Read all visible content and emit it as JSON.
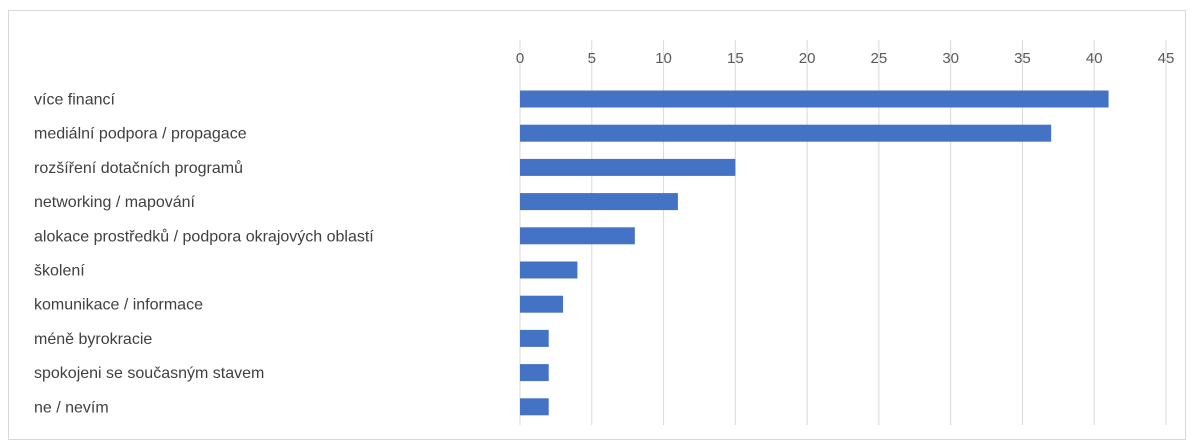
{
  "chart_data": {
    "type": "bar",
    "orientation": "horizontal",
    "categories": [
      "více financí",
      "mediální podpora / propagace",
      "rozšíření dotačních programů",
      "networking / mapování",
      "alokace prostředků / podpora okrajových oblastí",
      "školení",
      "komunikace / informace",
      "méně byrokracie",
      "spokojeni se současným stavem",
      "ne / nevím"
    ],
    "values": [
      41,
      37,
      15,
      11,
      8,
      4,
      3,
      2,
      2,
      2
    ],
    "xlim": [
      0,
      45
    ],
    "xticks": [
      0,
      5,
      10,
      15,
      20,
      25,
      30,
      35,
      40,
      45
    ],
    "x_axis_position": "top",
    "grid": true,
    "legend": "none",
    "title": "",
    "xlabel": "",
    "ylabel": "",
    "bar_color": "#4472c4",
    "grid_color": "#d9d9d9"
  }
}
